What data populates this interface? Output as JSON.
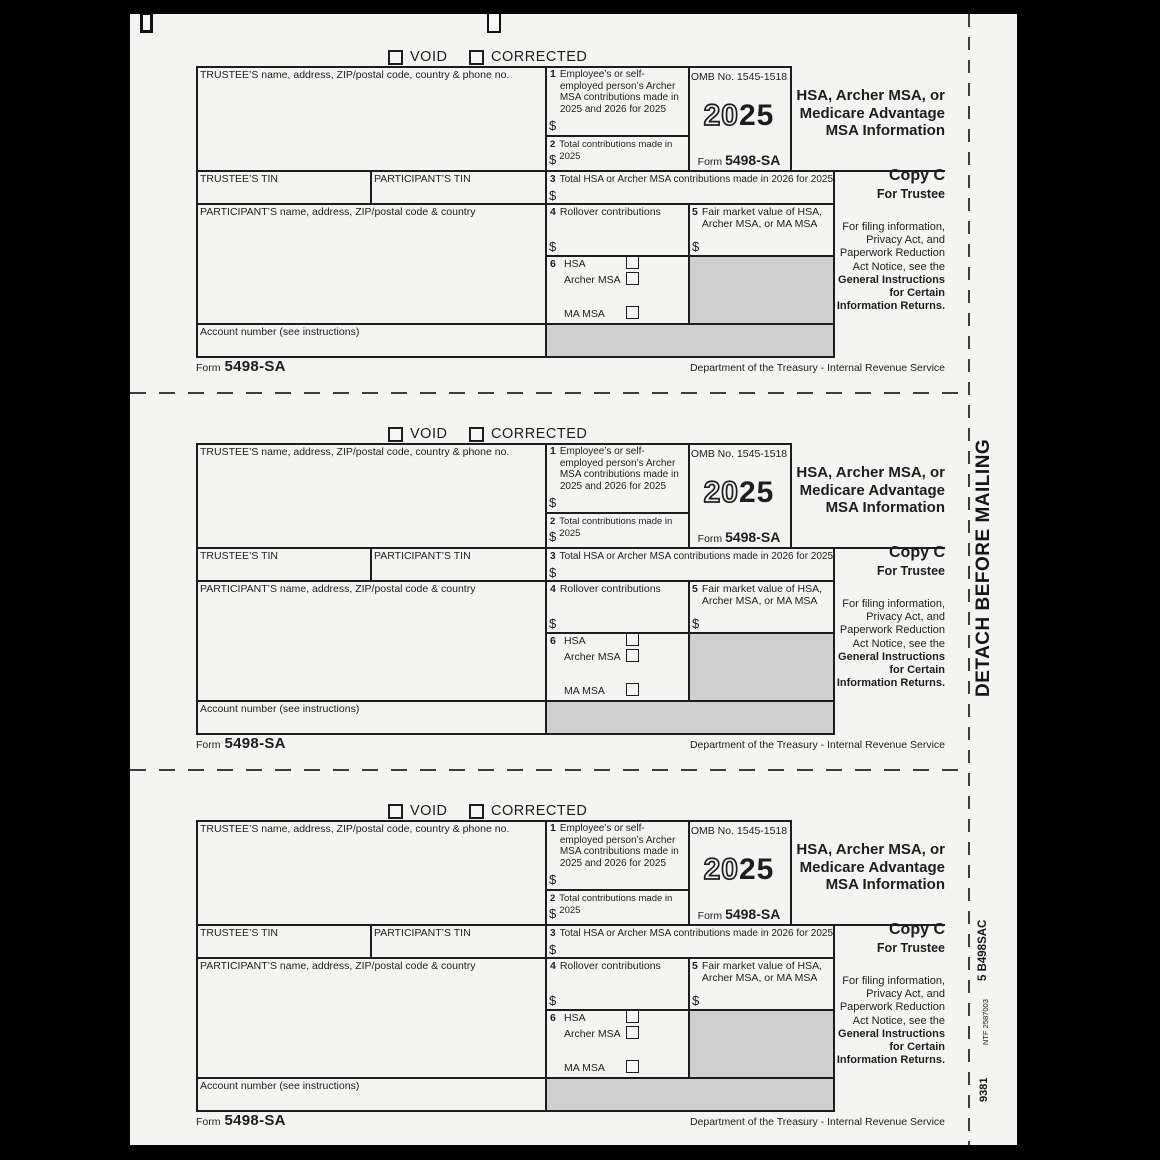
{
  "page": {
    "detach_label": "DETACH BEFORE MAILING",
    "product_code": "5  B498SAC",
    "ntf_code": "NTF 2587003",
    "stock_number": "9381"
  },
  "form": {
    "void_label": "VOID",
    "corrected_label": "CORRECTED",
    "omb_label": "OMB No. 1545-1518",
    "year_outline": "20",
    "year_solid": "25",
    "form_word": "Form",
    "form_number": "5498-SA",
    "title": "HSA, Archer MSA, or Medicare Advantage MSA Information",
    "copy_label": "Copy C",
    "copy_for": "For Trustee",
    "instructions_normal": "For filing information, Privacy Act, and Paperwork Reduction Act Notice, see the ",
    "instructions_bold": "General Instructions for Certain Information Returns.",
    "currency": "$",
    "trustee_name_label": "TRUSTEE’S name, address, ZIP/postal code, country & phone no.",
    "trustee_tin_label": "TRUSTEE’S TIN",
    "participant_tin_label": "PARTICIPANT’S TIN",
    "participant_name_label": "PARTICIPANT’S name, address, ZIP/postal code & country",
    "account_label": "Account number (see instructions)",
    "box1_num": "1",
    "box1_label": "Employee’s or self-employed person’s Archer MSA contributions made in 2025 and 2026 for 2025",
    "box2_num": "2",
    "box2_label": "Total contributions made in 2025",
    "box3_num": "3",
    "box3_label": "Total HSA or Archer MSA contributions made in 2026 for 2025",
    "box4_num": "4",
    "box4_label": "Rollover contributions",
    "box5_num": "5",
    "box5_label": "Fair market value of HSA, Archer MSA, or MA MSA",
    "box6_num": "6",
    "box6_hsa_label": "HSA",
    "box6_archer_label": "Archer MSA",
    "box6_mamsa_label": "MA MSA",
    "footer_dept": "Department of the Treasury - Internal Revenue Service"
  }
}
